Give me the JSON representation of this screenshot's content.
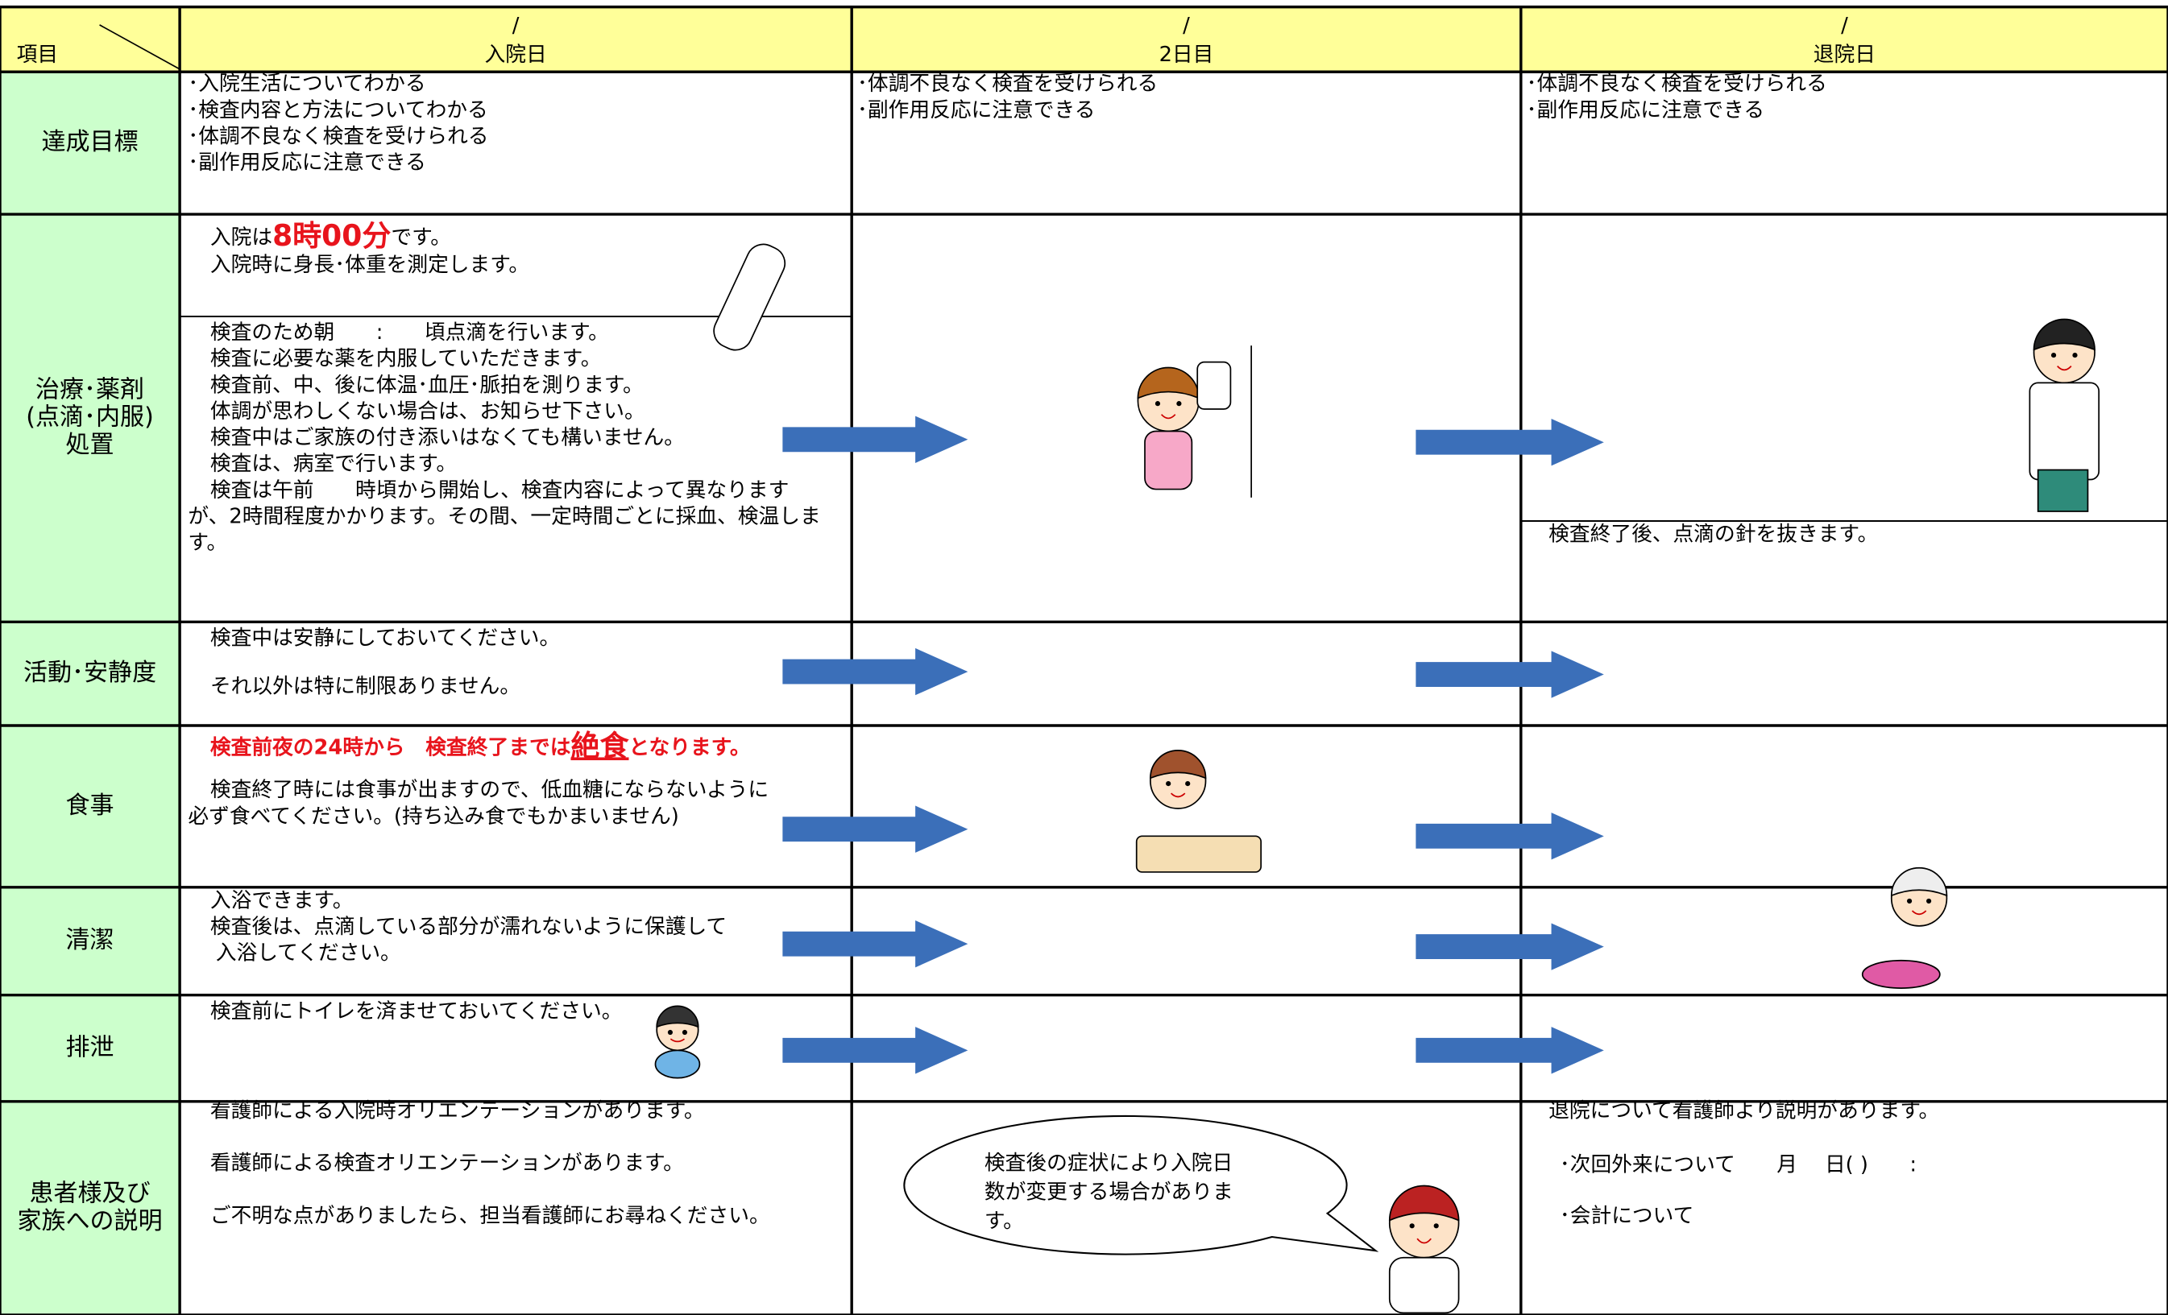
{
  "header": {
    "corner": "項目",
    "columns": [
      {
        "date": "/",
        "label": "入院日"
      },
      {
        "date": "/",
        "label": "2日目"
      },
      {
        "date": "/",
        "label": "退院日"
      }
    ]
  },
  "rows": [
    {
      "label": [
        "達成目標"
      ],
      "cells": [
        [
          "･入院生活についてわかる",
          "･検査内容と方法についてわかる",
          "･体調不良なく検査を受けられる",
          "･副作用反応に注意できる"
        ],
        [
          "･体調不良なく検査を受けられる",
          "･副作用反応に注意できる"
        ],
        [
          "･体調不良なく検査を受けられる",
          "･副作用反応に注意できる"
        ]
      ]
    },
    {
      "label": [
        "治療･薬剤",
        "(点滴･内服)",
        "処置"
      ],
      "intro": {
        "prefix": "入院は",
        "emphasis": "8時00分",
        "suffix": "です。"
      },
      "cells": [
        [
          "入院時に身長･体重を測定します。",
          "検査のため朝　　:　　頃点滴を行います。",
          "検査に必要な薬を内服していただきます。",
          "検査前、中、後に体温･血圧･脈拍を測ります。",
          "体調が思わしくない場合は、お知らせ下さい。",
          "検査中はご家族の付き添いはなくても構いません。",
          "検査は、病室で行います。",
          "検査は午前　　時頃から開始し、検査内容によって異なります",
          "が、2時間程度かかります。その間、一定時間ごとに採血、検温しま",
          "す。"
        ],
        [],
        [
          "検査終了後、点滴の針を抜きます。"
        ]
      ]
    },
    {
      "label": [
        "活動･安静度"
      ],
      "cells": [
        [
          "検査中は安静にしておいてください。",
          "それ以外は特に制限ありません。"
        ],
        [],
        []
      ]
    },
    {
      "label": [
        "食事"
      ],
      "intro": {
        "prefix": "検査前夜の24時から　検査終了までは",
        "emphasis": "絶食",
        "suffix": "となります。"
      },
      "cells": [
        [
          "検査終了時には食事が出ますので、低血糖にならないように",
          "必ず食べてください。(持ち込み食でもかまいません)"
        ],
        [],
        []
      ]
    },
    {
      "label": [
        "清潔"
      ],
      "cells": [
        [
          "入浴できます。",
          "検査後は、点滴している部分が濡れないように保護して",
          "入浴してください。"
        ],
        [],
        []
      ]
    },
    {
      "label": [
        "排泄"
      ],
      "cells": [
        [
          "検査前にトイレを済ませておいてください。"
        ],
        [],
        []
      ]
    },
    {
      "label": [
        "患者様及び",
        "家族への説明"
      ],
      "cells": [
        [
          "看護師による入院時オリエンテーションがあります。",
          "看護師による検査オリエンテーションがあります。",
          "ご不明な点がありましたら、担当看護師にお尋ねください。"
        ],
        [
          "検査後の症状により入院日",
          "数が変更する場合がありま",
          "す。"
        ],
        [
          "退院について看護師より説明があります。",
          "･次回外来について　　月　 日(  )　　:",
          "･会計について"
        ]
      ]
    }
  ]
}
